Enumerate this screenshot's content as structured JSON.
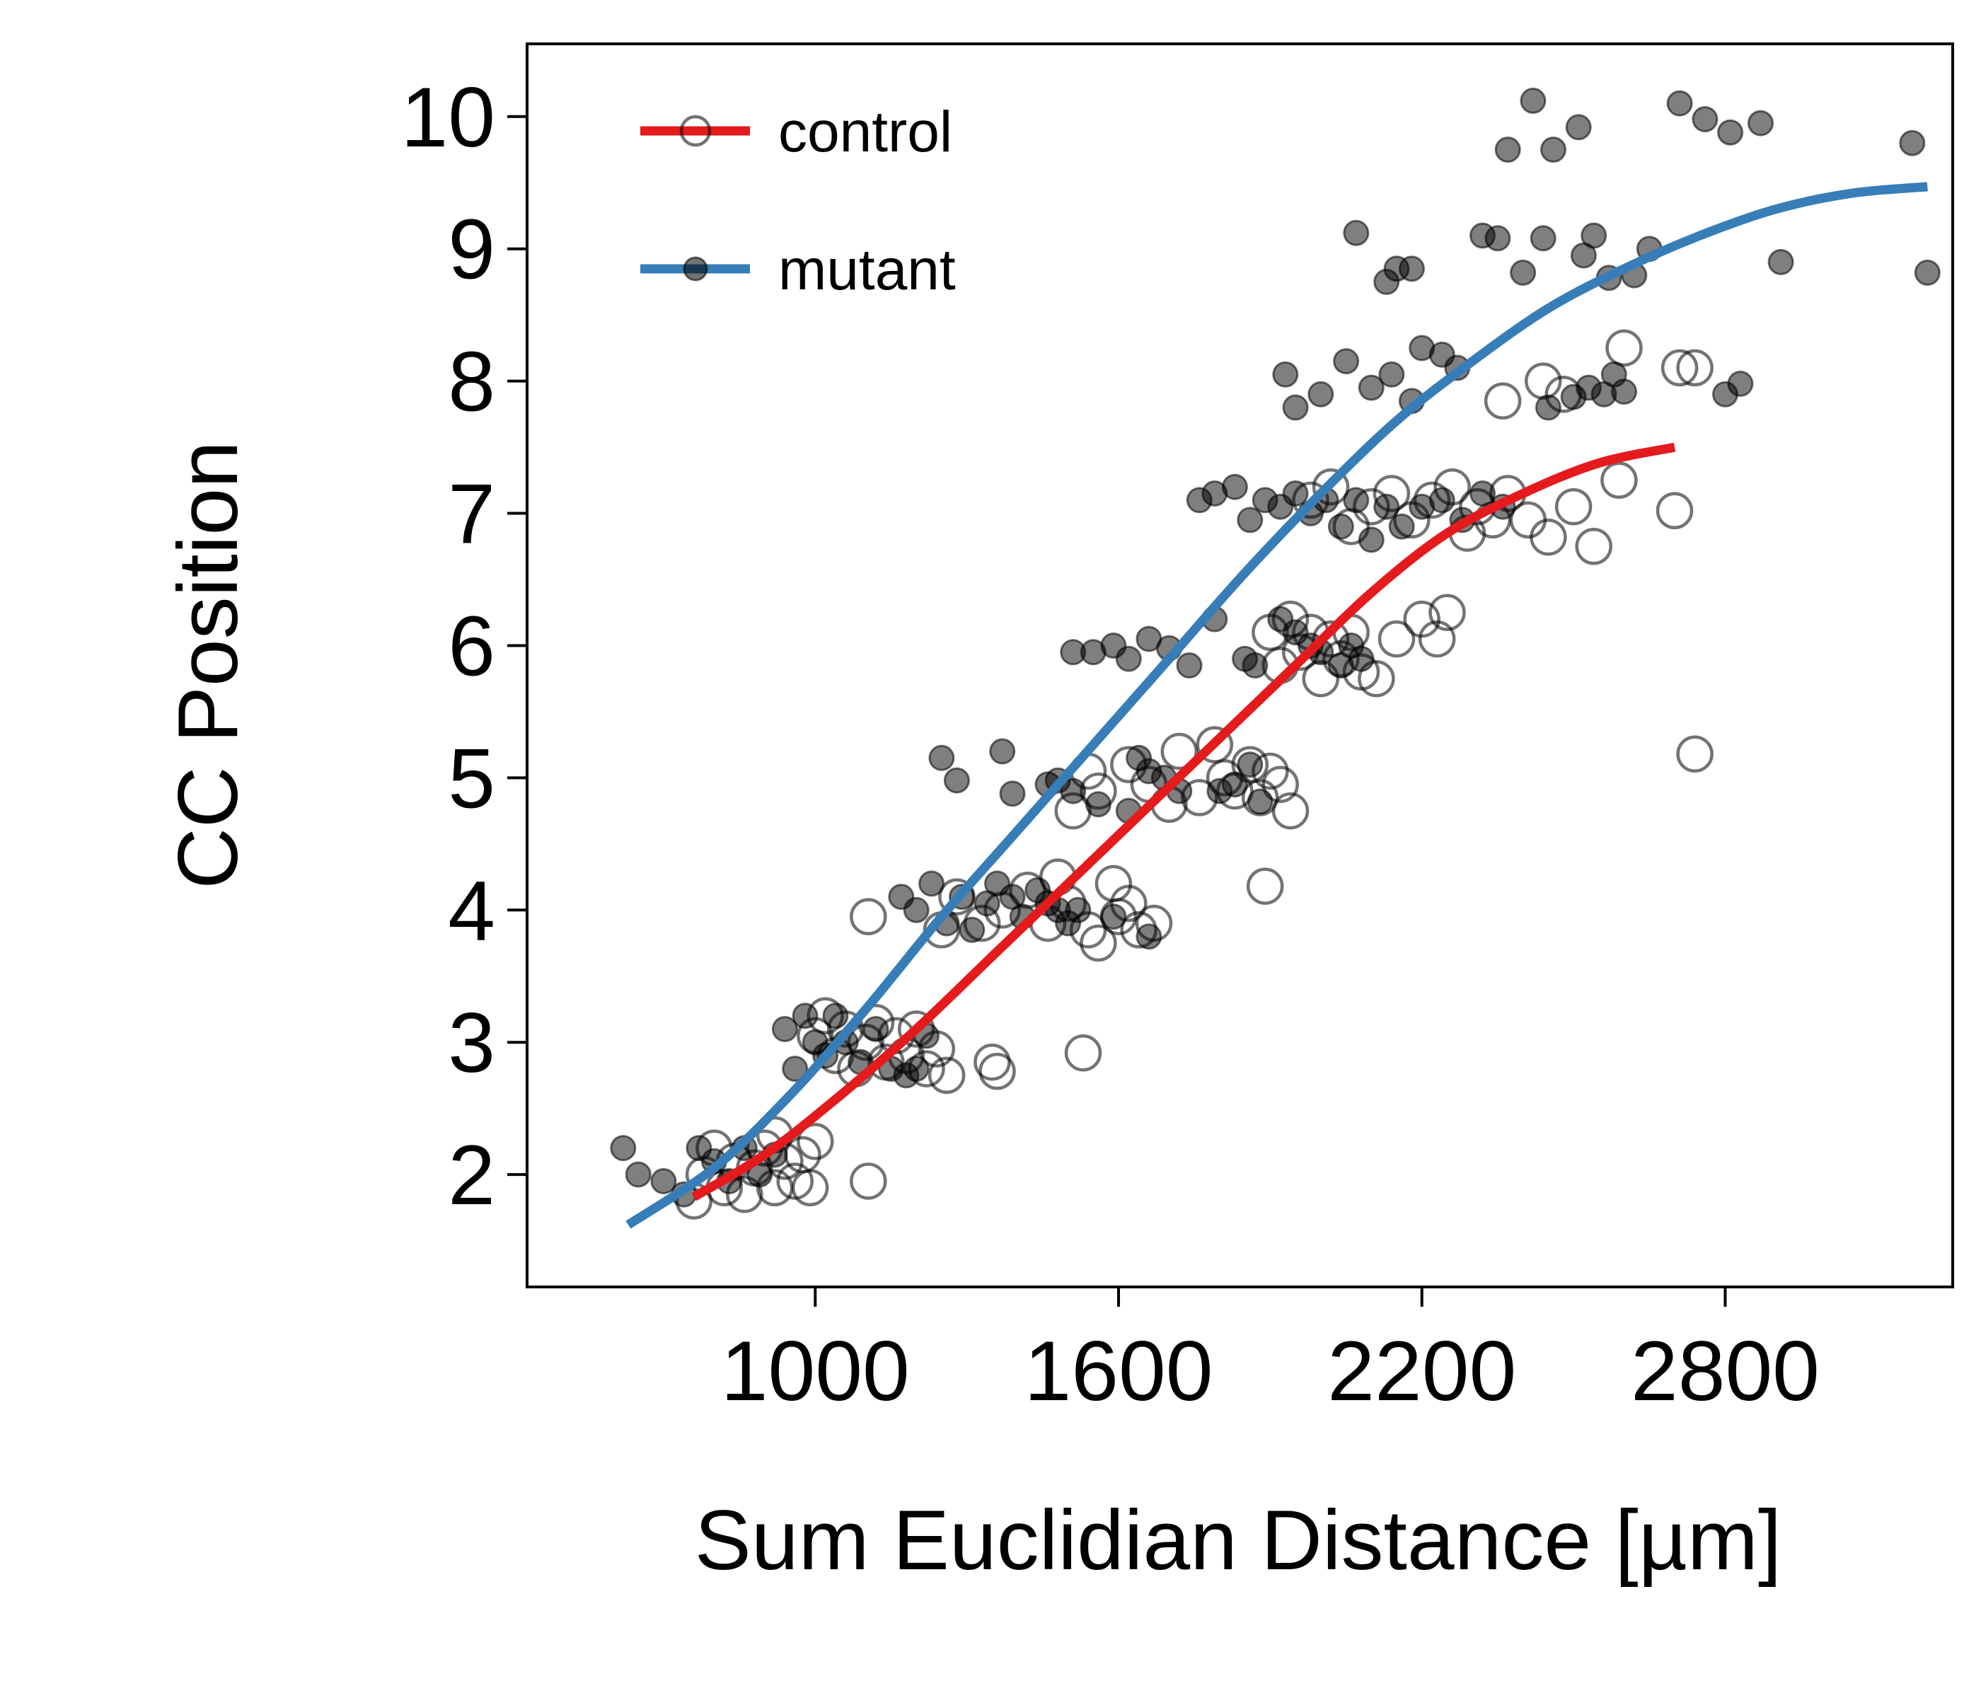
{
  "chart_data": {
    "type": "scatter",
    "xlabel": "Sum Euclidian Distance [µm]",
    "ylabel": "CC Position",
    "xlim": [
      430,
      3250
    ],
    "ylim": [
      1.15,
      10.55
    ],
    "xticks": [
      1000,
      1600,
      2200,
      2800
    ],
    "xtick_labels": [
      "1000",
      "1600",
      "2200",
      "2800"
    ],
    "yticks": [
      2,
      3,
      4,
      5,
      6,
      7,
      8,
      9,
      10
    ],
    "ytick_labels": [
      "2",
      "3",
      "4",
      "5",
      "6",
      "7",
      "8",
      "9",
      "10"
    ],
    "grid": false,
    "legend_position": "top-left",
    "series": [
      {
        "name": "control",
        "marker": "open-circle",
        "line_color": "#e41a1c",
        "marker_color": "#000000",
        "points": [
          [
            760,
            1.8
          ],
          [
            780,
            2.0
          ],
          [
            800,
            2.2
          ],
          [
            820,
            1.9
          ],
          [
            840,
            2.1
          ],
          [
            860,
            1.85
          ],
          [
            880,
            2.05
          ],
          [
            900,
            2.2
          ],
          [
            920,
            1.9
          ],
          [
            940,
            2.1
          ],
          [
            960,
            1.95
          ],
          [
            975,
            2.15
          ],
          [
            990,
            1.9
          ],
          [
            1000,
            2.25
          ],
          [
            920,
            2.3
          ],
          [
            1000,
            3.05
          ],
          [
            1020,
            3.2
          ],
          [
            1040,
            2.9
          ],
          [
            1060,
            3.1
          ],
          [
            1080,
            2.8
          ],
          [
            1100,
            3.0
          ],
          [
            1120,
            3.15
          ],
          [
            1140,
            2.85
          ],
          [
            1160,
            3.05
          ],
          [
            1180,
            2.9
          ],
          [
            1200,
            3.1
          ],
          [
            1220,
            2.8
          ],
          [
            1240,
            2.95
          ],
          [
            1260,
            2.75
          ],
          [
            1350,
            2.85
          ],
          [
            1360,
            2.78
          ],
          [
            1530,
            2.92
          ],
          [
            1105,
            1.95
          ],
          [
            1105,
            3.95
          ],
          [
            1250,
            3.85
          ],
          [
            1280,
            4.1
          ],
          [
            1330,
            3.9
          ],
          [
            1370,
            4.0
          ],
          [
            1420,
            4.15
          ],
          [
            1460,
            3.9
          ],
          [
            1500,
            4.05
          ],
          [
            1540,
            3.85
          ],
          [
            1560,
            3.75
          ],
          [
            1590,
            4.2
          ],
          [
            1600,
            3.95
          ],
          [
            1620,
            4.05
          ],
          [
            1640,
            3.85
          ],
          [
            1670,
            3.9
          ],
          [
            1480,
            4.25
          ],
          [
            1510,
            4.75
          ],
          [
            1540,
            5.05
          ],
          [
            1560,
            4.9
          ],
          [
            1620,
            5.1
          ],
          [
            1660,
            4.95
          ],
          [
            1700,
            4.8
          ],
          [
            1720,
            5.2
          ],
          [
            1760,
            4.85
          ],
          [
            1790,
            5.25
          ],
          [
            1810,
            5.0
          ],
          [
            1830,
            4.9
          ],
          [
            1860,
            5.1
          ],
          [
            1880,
            4.85
          ],
          [
            1900,
            5.05
          ],
          [
            1920,
            4.95
          ],
          [
            1940,
            4.75
          ],
          [
            1890,
            4.18
          ],
          [
            1900,
            6.1
          ],
          [
            1920,
            5.85
          ],
          [
            1940,
            6.2
          ],
          [
            1960,
            5.95
          ],
          [
            1980,
            6.1
          ],
          [
            2000,
            5.75
          ],
          [
            2020,
            6.05
          ],
          [
            2040,
            5.9
          ],
          [
            2060,
            6.1
          ],
          [
            2080,
            5.8
          ],
          [
            2110,
            5.75
          ],
          [
            2150,
            6.05
          ],
          [
            2200,
            6.2
          ],
          [
            2230,
            6.05
          ],
          [
            2250,
            6.25
          ],
          [
            1980,
            7.1
          ],
          [
            2020,
            7.2
          ],
          [
            2060,
            6.9
          ],
          [
            2100,
            7.05
          ],
          [
            2140,
            7.15
          ],
          [
            2180,
            6.95
          ],
          [
            2220,
            7.1
          ],
          [
            2260,
            7.2
          ],
          [
            2290,
            6.85
          ],
          [
            2310,
            7.05
          ],
          [
            2340,
            6.95
          ],
          [
            2370,
            7.15
          ],
          [
            2410,
            6.95
          ],
          [
            2450,
            6.82
          ],
          [
            2500,
            7.05
          ],
          [
            2540,
            6.75
          ],
          [
            2700,
            7.02
          ],
          [
            2590,
            7.25
          ],
          [
            2360,
            7.85
          ],
          [
            2440,
            8.0
          ],
          [
            2480,
            7.9
          ],
          [
            2600,
            8.25
          ],
          [
            2710,
            8.1
          ],
          [
            2740,
            8.1
          ],
          [
            2740,
            5.18
          ]
        ]
      },
      {
        "name": "mutant",
        "marker": "filled-circle",
        "line_color": "#377eb8",
        "marker_color": "#000000",
        "points": [
          [
            620,
            2.2
          ],
          [
            650,
            2.0
          ],
          [
            700,
            1.95
          ],
          [
            740,
            1.85
          ],
          [
            770,
            2.2
          ],
          [
            800,
            2.1
          ],
          [
            830,
            1.95
          ],
          [
            860,
            2.2
          ],
          [
            890,
            2.0
          ],
          [
            920,
            2.15
          ],
          [
            940,
            3.1
          ],
          [
            960,
            2.8
          ],
          [
            980,
            3.2
          ],
          [
            1000,
            3.0
          ],
          [
            1020,
            2.9
          ],
          [
            1040,
            3.2
          ],
          [
            1060,
            3.0
          ],
          [
            1090,
            2.85
          ],
          [
            1120,
            3.1
          ],
          [
            1150,
            2.8
          ],
          [
            1180,
            2.75
          ],
          [
            1200,
            2.8
          ],
          [
            1220,
            3.05
          ],
          [
            1170,
            4.1
          ],
          [
            1200,
            4.0
          ],
          [
            1230,
            4.2
          ],
          [
            1260,
            3.9
          ],
          [
            1290,
            4.1
          ],
          [
            1310,
            3.85
          ],
          [
            1340,
            4.05
          ],
          [
            1360,
            4.2
          ],
          [
            1390,
            4.1
          ],
          [
            1410,
            3.95
          ],
          [
            1440,
            4.15
          ],
          [
            1460,
            4.05
          ],
          [
            1480,
            4.0
          ],
          [
            1500,
            3.9
          ],
          [
            1520,
            4.0
          ],
          [
            1590,
            3.95
          ],
          [
            1660,
            3.8
          ],
          [
            1250,
            5.15
          ],
          [
            1280,
            4.98
          ],
          [
            1370,
            5.2
          ],
          [
            1390,
            4.88
          ],
          [
            1460,
            4.95
          ],
          [
            1480,
            4.98
          ],
          [
            1510,
            4.9
          ],
          [
            1560,
            4.8
          ],
          [
            1620,
            4.75
          ],
          [
            1640,
            5.15
          ],
          [
            1660,
            5.05
          ],
          [
            1690,
            5.0
          ],
          [
            1720,
            4.9
          ],
          [
            1800,
            4.9
          ],
          [
            1830,
            4.95
          ],
          [
            1860,
            5.1
          ],
          [
            1880,
            4.82
          ],
          [
            1510,
            5.95
          ],
          [
            1550,
            5.95
          ],
          [
            1590,
            6.0
          ],
          [
            1620,
            5.9
          ],
          [
            1660,
            6.05
          ],
          [
            1700,
            5.98
          ],
          [
            1740,
            5.85
          ],
          [
            1790,
            6.2
          ],
          [
            1850,
            5.9
          ],
          [
            1870,
            5.85
          ],
          [
            1920,
            6.2
          ],
          [
            1950,
            6.1
          ],
          [
            1980,
            6.0
          ],
          [
            2000,
            5.95
          ],
          [
            2040,
            5.85
          ],
          [
            2060,
            6.0
          ],
          [
            2080,
            5.9
          ],
          [
            1760,
            7.1
          ],
          [
            1790,
            7.15
          ],
          [
            1830,
            7.2
          ],
          [
            1860,
            6.95
          ],
          [
            1890,
            7.1
          ],
          [
            1920,
            7.05
          ],
          [
            1950,
            7.15
          ],
          [
            1980,
            7.0
          ],
          [
            2010,
            7.1
          ],
          [
            2040,
            6.9
          ],
          [
            2070,
            7.1
          ],
          [
            2100,
            6.8
          ],
          [
            2130,
            7.05
          ],
          [
            2160,
            6.9
          ],
          [
            2200,
            7.05
          ],
          [
            2240,
            7.1
          ],
          [
            2280,
            6.95
          ],
          [
            2320,
            7.15
          ],
          [
            2360,
            7.05
          ],
          [
            1930,
            8.05
          ],
          [
            1950,
            7.8
          ],
          [
            2000,
            7.9
          ],
          [
            2050,
            8.15
          ],
          [
            2100,
            7.95
          ],
          [
            2140,
            8.05
          ],
          [
            2180,
            7.85
          ],
          [
            2200,
            8.25
          ],
          [
            2240,
            8.2
          ],
          [
            2270,
            8.1
          ],
          [
            2450,
            7.8
          ],
          [
            2500,
            7.88
          ],
          [
            2530,
            7.95
          ],
          [
            2560,
            7.9
          ],
          [
            2580,
            8.05
          ],
          [
            2600,
            7.92
          ],
          [
            2800,
            7.9
          ],
          [
            2830,
            7.98
          ],
          [
            2070,
            9.12
          ],
          [
            2130,
            8.75
          ],
          [
            2150,
            8.85
          ],
          [
            2180,
            8.85
          ],
          [
            2320,
            9.1
          ],
          [
            2350,
            9.08
          ],
          [
            2400,
            8.82
          ],
          [
            2440,
            9.08
          ],
          [
            2520,
            8.95
          ],
          [
            2540,
            9.1
          ],
          [
            2570,
            8.78
          ],
          [
            2620,
            8.8
          ],
          [
            2650,
            9.0
          ],
          [
            2370,
            9.75
          ],
          [
            2420,
            10.12
          ],
          [
            2460,
            9.75
          ],
          [
            2510,
            9.92
          ],
          [
            2710,
            10.1
          ],
          [
            2760,
            9.98
          ],
          [
            2810,
            9.88
          ],
          [
            2870,
            9.95
          ],
          [
            2910,
            8.9
          ],
          [
            3170,
            9.8
          ],
          [
            3200,
            8.82
          ]
        ]
      }
    ],
    "fit_lines": [
      {
        "name": "control",
        "color": "#e41a1c",
        "points": [
          [
            760,
            1.83
          ],
          [
            900,
            2.15
          ],
          [
            1050,
            2.6
          ],
          [
            1200,
            3.1
          ],
          [
            1350,
            3.65
          ],
          [
            1500,
            4.2
          ],
          [
            1650,
            4.75
          ],
          [
            1800,
            5.3
          ],
          [
            1950,
            5.85
          ],
          [
            2100,
            6.4
          ],
          [
            2250,
            6.85
          ],
          [
            2400,
            7.15
          ],
          [
            2550,
            7.38
          ],
          [
            2700,
            7.5
          ]
        ]
      },
      {
        "name": "mutant",
        "color": "#377eb8",
        "points": [
          [
            630,
            1.62
          ],
          [
            800,
            2.05
          ],
          [
            950,
            2.6
          ],
          [
            1100,
            3.25
          ],
          [
            1250,
            3.95
          ],
          [
            1400,
            4.6
          ],
          [
            1550,
            5.25
          ],
          [
            1700,
            5.9
          ],
          [
            1850,
            6.55
          ],
          [
            2000,
            7.15
          ],
          [
            2150,
            7.7
          ],
          [
            2300,
            8.15
          ],
          [
            2450,
            8.55
          ],
          [
            2600,
            8.85
          ],
          [
            2750,
            9.1
          ],
          [
            2900,
            9.3
          ],
          [
            3050,
            9.42
          ],
          [
            3200,
            9.47
          ]
        ]
      }
    ]
  }
}
